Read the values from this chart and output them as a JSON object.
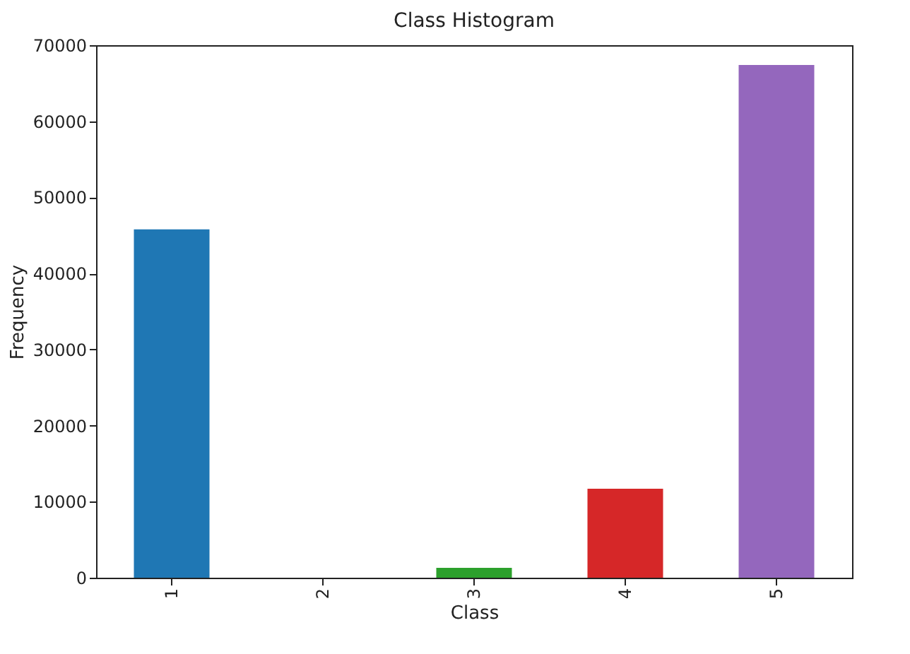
{
  "chart_data": {
    "type": "bar",
    "title": "Class Histogram",
    "xlabel": "Class",
    "ylabel": "Frequency",
    "categories": [
      "1",
      "2",
      "3",
      "4",
      "5"
    ],
    "values": [
      45800,
      0,
      1300,
      11700,
      67400
    ],
    "colors": [
      "#1f77b4",
      "#ff7f0e",
      "#2ca02c",
      "#d62728",
      "#9467bd"
    ],
    "ylim": [
      0,
      70000
    ],
    "yticks": [
      0,
      10000,
      20000,
      30000,
      40000,
      50000,
      60000,
      70000
    ],
    "grid": false
  }
}
